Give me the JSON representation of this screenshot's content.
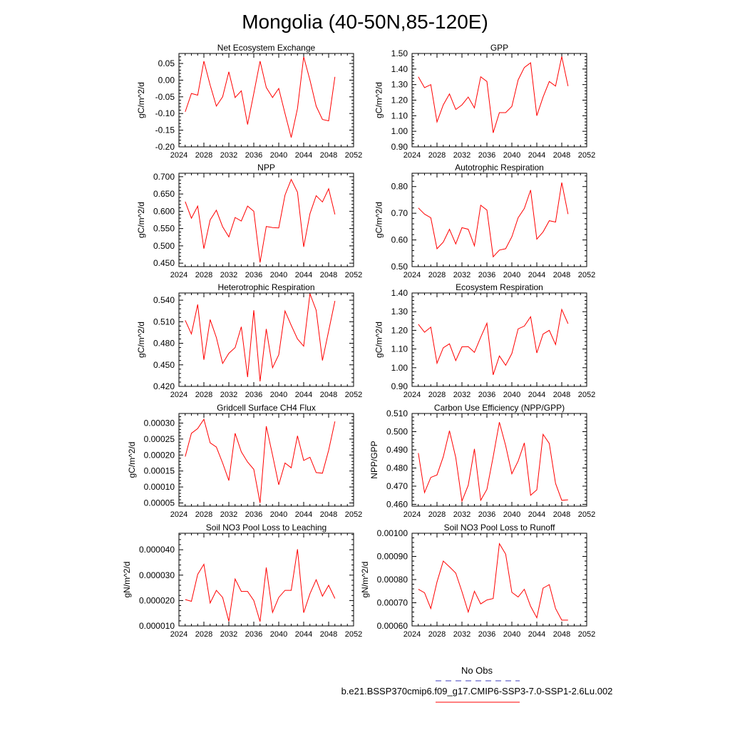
{
  "title": "Mongolia (40-50N,85-120E)",
  "colors": {
    "model_line": "#ff0000",
    "obs_line": "#6666cc",
    "axis": "#000000"
  },
  "legend": {
    "entries": [
      {
        "label": "No Obs",
        "style": "dashed",
        "color": "#6666cc"
      },
      {
        "label": "b.e21.BSSP370cmip6.f09_g17.CMIP6-SSP3-7.0-SSP1-2.6Lu.002",
        "style": "solid",
        "color": "#ff0000"
      }
    ]
  },
  "chart_data": [
    {
      "type": "line",
      "title": "Net Ecosystem Exchange",
      "ylabel": "gC/m^2/d",
      "xlim": [
        2024,
        2052
      ],
      "ylim": [
        -0.2,
        0.08
      ],
      "xticks": [
        2024,
        2028,
        2032,
        2036,
        2040,
        2044,
        2048,
        2052
      ],
      "yticks": [
        -0.2,
        -0.15,
        -0.1,
        -0.05,
        0.0,
        0.05
      ],
      "ytick_labels": [
        "-0.20",
        "-0.15",
        "-0.10",
        "-0.05",
        "0.00",
        "0.05"
      ],
      "x": [
        2025,
        2026,
        2027,
        2028,
        2029,
        2030,
        2031,
        2032,
        2033,
        2034,
        2035,
        2036,
        2037,
        2038,
        2039,
        2040,
        2041,
        2042,
        2043,
        2044,
        2045,
        2046,
        2047,
        2048,
        2049
      ],
      "series": [
        {
          "values": [
            -0.095,
            -0.04,
            -0.045,
            0.057,
            -0.015,
            -0.078,
            -0.05,
            0.025,
            -0.052,
            -0.032,
            -0.133,
            -0.04,
            0.057,
            -0.022,
            -0.052,
            -0.025,
            -0.1,
            -0.172,
            -0.085,
            0.07,
            0.0,
            -0.078,
            -0.118,
            -0.122,
            0.01
          ]
        }
      ]
    },
    {
      "type": "line",
      "title": "GPP",
      "ylabel": "gC/m^2/d",
      "xlim": [
        2024,
        2052
      ],
      "ylim": [
        0.9,
        1.5
      ],
      "xticks": [
        2024,
        2028,
        2032,
        2036,
        2040,
        2044,
        2048,
        2052
      ],
      "yticks": [
        0.9,
        1.0,
        1.1,
        1.2,
        1.3,
        1.4,
        1.5
      ],
      "ytick_labels": [
        "0.90",
        "1.00",
        "1.10",
        "1.20",
        "1.30",
        "1.40",
        "1.50"
      ],
      "x": [
        2025,
        2026,
        2027,
        2028,
        2029,
        2030,
        2031,
        2032,
        2033,
        2034,
        2035,
        2036,
        2037,
        2038,
        2039,
        2040,
        2041,
        2042,
        2043,
        2044,
        2045,
        2046,
        2047,
        2048,
        2049
      ],
      "series": [
        {
          "values": [
            1.35,
            1.28,
            1.3,
            1.06,
            1.17,
            1.24,
            1.14,
            1.17,
            1.22,
            1.15,
            1.35,
            1.32,
            0.99,
            1.12,
            1.12,
            1.16,
            1.33,
            1.41,
            1.44,
            1.1,
            1.22,
            1.32,
            1.29,
            1.48,
            1.29
          ]
        }
      ]
    },
    {
      "type": "line",
      "title": "NPP",
      "ylabel": "gC/m^2/d",
      "xlim": [
        2024,
        2052
      ],
      "ylim": [
        0.44,
        0.71
      ],
      "xticks": [
        2024,
        2028,
        2032,
        2036,
        2040,
        2044,
        2048,
        2052
      ],
      "yticks": [
        0.45,
        0.5,
        0.55,
        0.6,
        0.65,
        0.7
      ],
      "ytick_labels": [
        "0.450",
        "0.500",
        "0.550",
        "0.600",
        "0.650",
        "0.700"
      ],
      "x": [
        2025,
        2026,
        2027,
        2028,
        2029,
        2030,
        2031,
        2032,
        2033,
        2034,
        2035,
        2036,
        2037,
        2038,
        2039,
        2040,
        2041,
        2042,
        2043,
        2044,
        2045,
        2046,
        2047,
        2048,
        2049
      ],
      "series": [
        {
          "values": [
            0.628,
            0.58,
            0.615,
            0.492,
            0.575,
            0.603,
            0.555,
            0.526,
            0.582,
            0.572,
            0.615,
            0.6,
            0.452,
            0.556,
            0.553,
            0.552,
            0.647,
            0.692,
            0.655,
            0.497,
            0.593,
            0.645,
            0.627,
            0.665,
            0.591
          ]
        }
      ]
    },
    {
      "type": "line",
      "title": "Autotrophic Respiration",
      "ylabel": "gC/m^2/d",
      "xlim": [
        2024,
        2052
      ],
      "ylim": [
        0.5,
        0.85
      ],
      "xticks": [
        2024,
        2028,
        2032,
        2036,
        2040,
        2044,
        2048,
        2052
      ],
      "yticks": [
        0.5,
        0.6,
        0.7,
        0.8
      ],
      "ytick_labels": [
        "0.50",
        "0.60",
        "0.70",
        "0.80"
      ],
      "x": [
        2025,
        2026,
        2027,
        2028,
        2029,
        2030,
        2031,
        2032,
        2033,
        2034,
        2035,
        2036,
        2037,
        2038,
        2039,
        2040,
        2041,
        2042,
        2043,
        2044,
        2045,
        2046,
        2047,
        2048,
        2049
      ],
      "series": [
        {
          "values": [
            0.72,
            0.697,
            0.683,
            0.567,
            0.592,
            0.64,
            0.585,
            0.646,
            0.64,
            0.578,
            0.73,
            0.712,
            0.537,
            0.562,
            0.567,
            0.612,
            0.683,
            0.718,
            0.787,
            0.603,
            0.63,
            0.672,
            0.667,
            0.815,
            0.697
          ]
        }
      ]
    },
    {
      "type": "line",
      "title": "Heterotrophic Respiration",
      "ylabel": "gC/m^2/d",
      "xlim": [
        2024,
        2052
      ],
      "ylim": [
        0.42,
        0.55
      ],
      "xticks": [
        2024,
        2028,
        2032,
        2036,
        2040,
        2044,
        2048,
        2052
      ],
      "yticks": [
        0.42,
        0.45,
        0.48,
        0.51,
        0.54
      ],
      "ytick_labels": [
        "0.420",
        "0.450",
        "0.480",
        "0.510",
        "0.540"
      ],
      "x": [
        2025,
        2026,
        2027,
        2028,
        2029,
        2030,
        2031,
        2032,
        2033,
        2034,
        2035,
        2036,
        2037,
        2038,
        2039,
        2040,
        2041,
        2042,
        2043,
        2044,
        2045,
        2046,
        2047,
        2048,
        2049
      ],
      "series": [
        {
          "values": [
            0.512,
            0.493,
            0.534,
            0.457,
            0.513,
            0.488,
            0.452,
            0.466,
            0.474,
            0.503,
            0.433,
            0.526,
            0.427,
            0.5,
            0.446,
            0.464,
            0.525,
            0.505,
            0.486,
            0.476,
            0.549,
            0.526,
            0.456,
            0.497,
            0.539
          ]
        }
      ]
    },
    {
      "type": "line",
      "title": "Ecosystem Respiration",
      "ylabel": "gC/m^2/d",
      "xlim": [
        2024,
        2052
      ],
      "ylim": [
        0.9,
        1.4
      ],
      "xticks": [
        2024,
        2028,
        2032,
        2036,
        2040,
        2044,
        2048,
        2052
      ],
      "yticks": [
        0.9,
        1.0,
        1.1,
        1.2,
        1.3,
        1.4
      ],
      "ytick_labels": [
        "0.90",
        "1.00",
        "1.10",
        "1.20",
        "1.30",
        "1.40"
      ],
      "x": [
        2025,
        2026,
        2027,
        2028,
        2029,
        2030,
        2031,
        2032,
        2033,
        2034,
        2035,
        2036,
        2037,
        2038,
        2039,
        2040,
        2041,
        2042,
        2043,
        2044,
        2045,
        2046,
        2047,
        2048,
        2049
      ],
      "series": [
        {
          "values": [
            1.233,
            1.19,
            1.217,
            1.024,
            1.107,
            1.128,
            1.038,
            1.112,
            1.113,
            1.082,
            1.163,
            1.238,
            0.962,
            1.063,
            1.013,
            1.076,
            1.208,
            1.223,
            1.273,
            1.079,
            1.18,
            1.2,
            1.124,
            1.312,
            1.236
          ]
        }
      ]
    },
    {
      "type": "line",
      "title": "Gridcell Surface CH4 Flux",
      "ylabel": "gC/m^2/d",
      "xlim": [
        2024,
        2052
      ],
      "ylim": [
        4e-05,
        0.00033
      ],
      "xticks": [
        2024,
        2028,
        2032,
        2036,
        2040,
        2044,
        2048,
        2052
      ],
      "yticks": [
        5e-05,
        0.0001,
        0.00015,
        0.0002,
        0.00025,
        0.0003
      ],
      "ytick_labels": [
        "0.00005",
        "0.00010",
        "0.00015",
        "0.00020",
        "0.00025",
        "0.00030"
      ],
      "x": [
        2025,
        2026,
        2027,
        2028,
        2029,
        2030,
        2031,
        2032,
        2033,
        2034,
        2035,
        2036,
        2037,
        2038,
        2039,
        2040,
        2041,
        2042,
        2043,
        2044,
        2045,
        2046,
        2047,
        2048,
        2049
      ],
      "series": [
        {
          "values": [
            0.000195,
            0.000268,
            0.000283,
            0.000312,
            0.000238,
            0.000225,
            0.000175,
            0.00012,
            0.000268,
            0.00021,
            0.000178,
            0.000155,
            5e-05,
            0.00029,
            0.0002,
            0.000107,
            0.000175,
            0.00016,
            0.00026,
            0.000183,
            0.000193,
            0.000145,
            0.000143,
            0.000215,
            0.000305
          ]
        }
      ]
    },
    {
      "type": "line",
      "title": "Carbon Use Efficiency (NPP/GPP)",
      "ylabel": "NPP/GPP",
      "xlim": [
        2024,
        2052
      ],
      "ylim": [
        0.459,
        0.51
      ],
      "xticks": [
        2024,
        2028,
        2032,
        2036,
        2040,
        2044,
        2048,
        2052
      ],
      "yticks": [
        0.46,
        0.47,
        0.48,
        0.49,
        0.5,
        0.51
      ],
      "ytick_labels": [
        "0.460",
        "0.470",
        "0.480",
        "0.490",
        "0.500",
        "0.510"
      ],
      "x": [
        2025,
        2026,
        2027,
        2028,
        2029,
        2030,
        2031,
        2032,
        2033,
        2034,
        2035,
        2036,
        2037,
        2038,
        2039,
        2040,
        2041,
        2042,
        2043,
        2044,
        2045,
        2046,
        2047,
        2048,
        2049
      ],
      "series": [
        {
          "values": [
            0.4882,
            0.4665,
            0.4748,
            0.4762,
            0.4862,
            0.5005,
            0.4858,
            0.4618,
            0.4705,
            0.4905,
            0.4622,
            0.4682,
            0.4862,
            0.5052,
            0.4923,
            0.4768,
            0.4838,
            0.4938,
            0.465,
            0.468,
            0.4985,
            0.4935,
            0.4715,
            0.4622,
            0.4625
          ]
        }
      ]
    },
    {
      "type": "line",
      "title": "Soil NO3 Pool Loss to Leaching",
      "ylabel": "gN/m^2/d",
      "xlim": [
        2024,
        2052
      ],
      "ylim": [
        1e-05,
        4.65e-05
      ],
      "xticks": [
        2024,
        2028,
        2032,
        2036,
        2040,
        2044,
        2048,
        2052
      ],
      "yticks": [
        1e-05,
        2e-05,
        3e-05,
        4e-05
      ],
      "ytick_labels": [
        "0.000010",
        "0.000020",
        "0.000030",
        "0.000040"
      ],
      "x": [
        2025,
        2026,
        2027,
        2028,
        2029,
        2030,
        2031,
        2032,
        2033,
        2034,
        2035,
        2036,
        2037,
        2038,
        2039,
        2040,
        2041,
        2042,
        2043,
        2044,
        2045,
        2046,
        2047,
        2048,
        2049
      ],
      "series": [
        {
          "values": [
            2.04e-05,
            1.97e-05,
            3.03e-05,
            3.43e-05,
            1.9e-05,
            2.4e-05,
            2.12e-05,
            1.18e-05,
            2.85e-05,
            2.36e-05,
            2.36e-05,
            2e-05,
            1.17e-05,
            3.3e-05,
            1.53e-05,
            2.12e-05,
            2.4e-05,
            2.4e-05,
            4.02e-05,
            1.52e-05,
            2.27e-05,
            2.82e-05,
            2.17e-05,
            2.6e-05,
            2.08e-05
          ]
        }
      ]
    },
    {
      "type": "line",
      "title": "Soil NO3 Pool Loss to Runoff",
      "ylabel": "gN/m^2/d",
      "xlim": [
        2024,
        2052
      ],
      "ylim": [
        0.0006,
        0.001
      ],
      "xticks": [
        2024,
        2028,
        2032,
        2036,
        2040,
        2044,
        2048,
        2052
      ],
      "yticks": [
        0.0006,
        0.0007,
        0.0008,
        0.0009,
        0.001
      ],
      "ytick_labels": [
        "0.00060",
        "0.00070",
        "0.00080",
        "0.00090",
        "0.00100"
      ],
      "x": [
        2025,
        2026,
        2027,
        2028,
        2029,
        2030,
        2031,
        2032,
        2033,
        2034,
        2035,
        2036,
        2037,
        2038,
        2039,
        2040,
        2041,
        2042,
        2043,
        2044,
        2045,
        2046,
        2047,
        2048,
        2049
      ],
      "series": [
        {
          "values": [
            0.000758,
            0.000743,
            0.000675,
            0.00079,
            0.00088,
            0.000855,
            0.000828,
            0.000748,
            0.00066,
            0.00075,
            0.000695,
            0.000712,
            0.000718,
            0.000955,
            0.00091,
            0.000745,
            0.000725,
            0.000758,
            0.000685,
            0.000635,
            0.000763,
            0.000778,
            0.000675,
            0.000625,
            0.000625
          ]
        }
      ]
    }
  ]
}
